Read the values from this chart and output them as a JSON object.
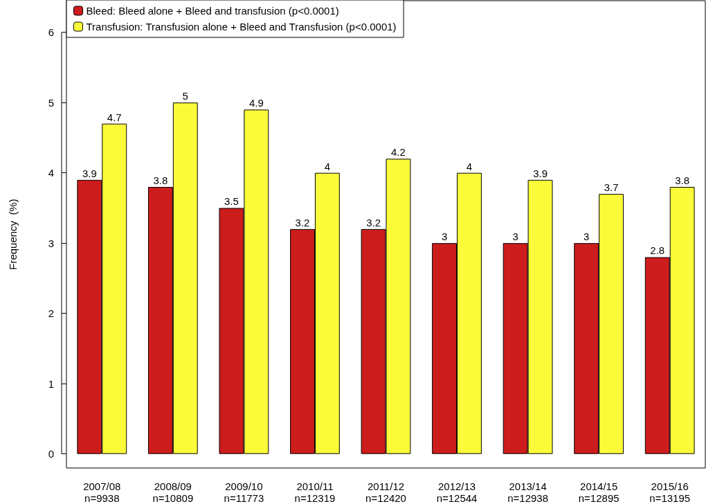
{
  "chart_data": {
    "type": "bar",
    "ylabel": "Frequency  (%)",
    "categories": [
      "2007/08\nn=9938",
      "2008/09\nn=10809",
      "2009/10\nn=11773",
      "2010/11\nn=12319",
      "2011/12\nn=12420",
      "2012/13\nn=12544",
      "2013/14\nn=12938",
      "2014/15\nn=12895",
      "2015/16\nn=13195"
    ],
    "series": [
      {
        "name": "Bleed: Bleed alone + Bleed and transfusion (p<0.0001)",
        "color": "#cc1c1c",
        "values": [
          3.9,
          3.8,
          3.5,
          3.2,
          3.2,
          3,
          3,
          3,
          2.8
        ]
      },
      {
        "name": "Transfusion: Transfusion alone + Bleed and Transfusion (p<0.0001)",
        "color": "#fbfb3a",
        "values": [
          4.7,
          5,
          4.9,
          4,
          4.2,
          4,
          3.9,
          3.7,
          3.8
        ]
      }
    ],
    "ylim": [
      -0.2,
      6.45
    ],
    "yticks": [
      0,
      1,
      2,
      3,
      4,
      5,
      6
    ],
    "grid": false,
    "legend": "top left",
    "data_labels": true
  }
}
